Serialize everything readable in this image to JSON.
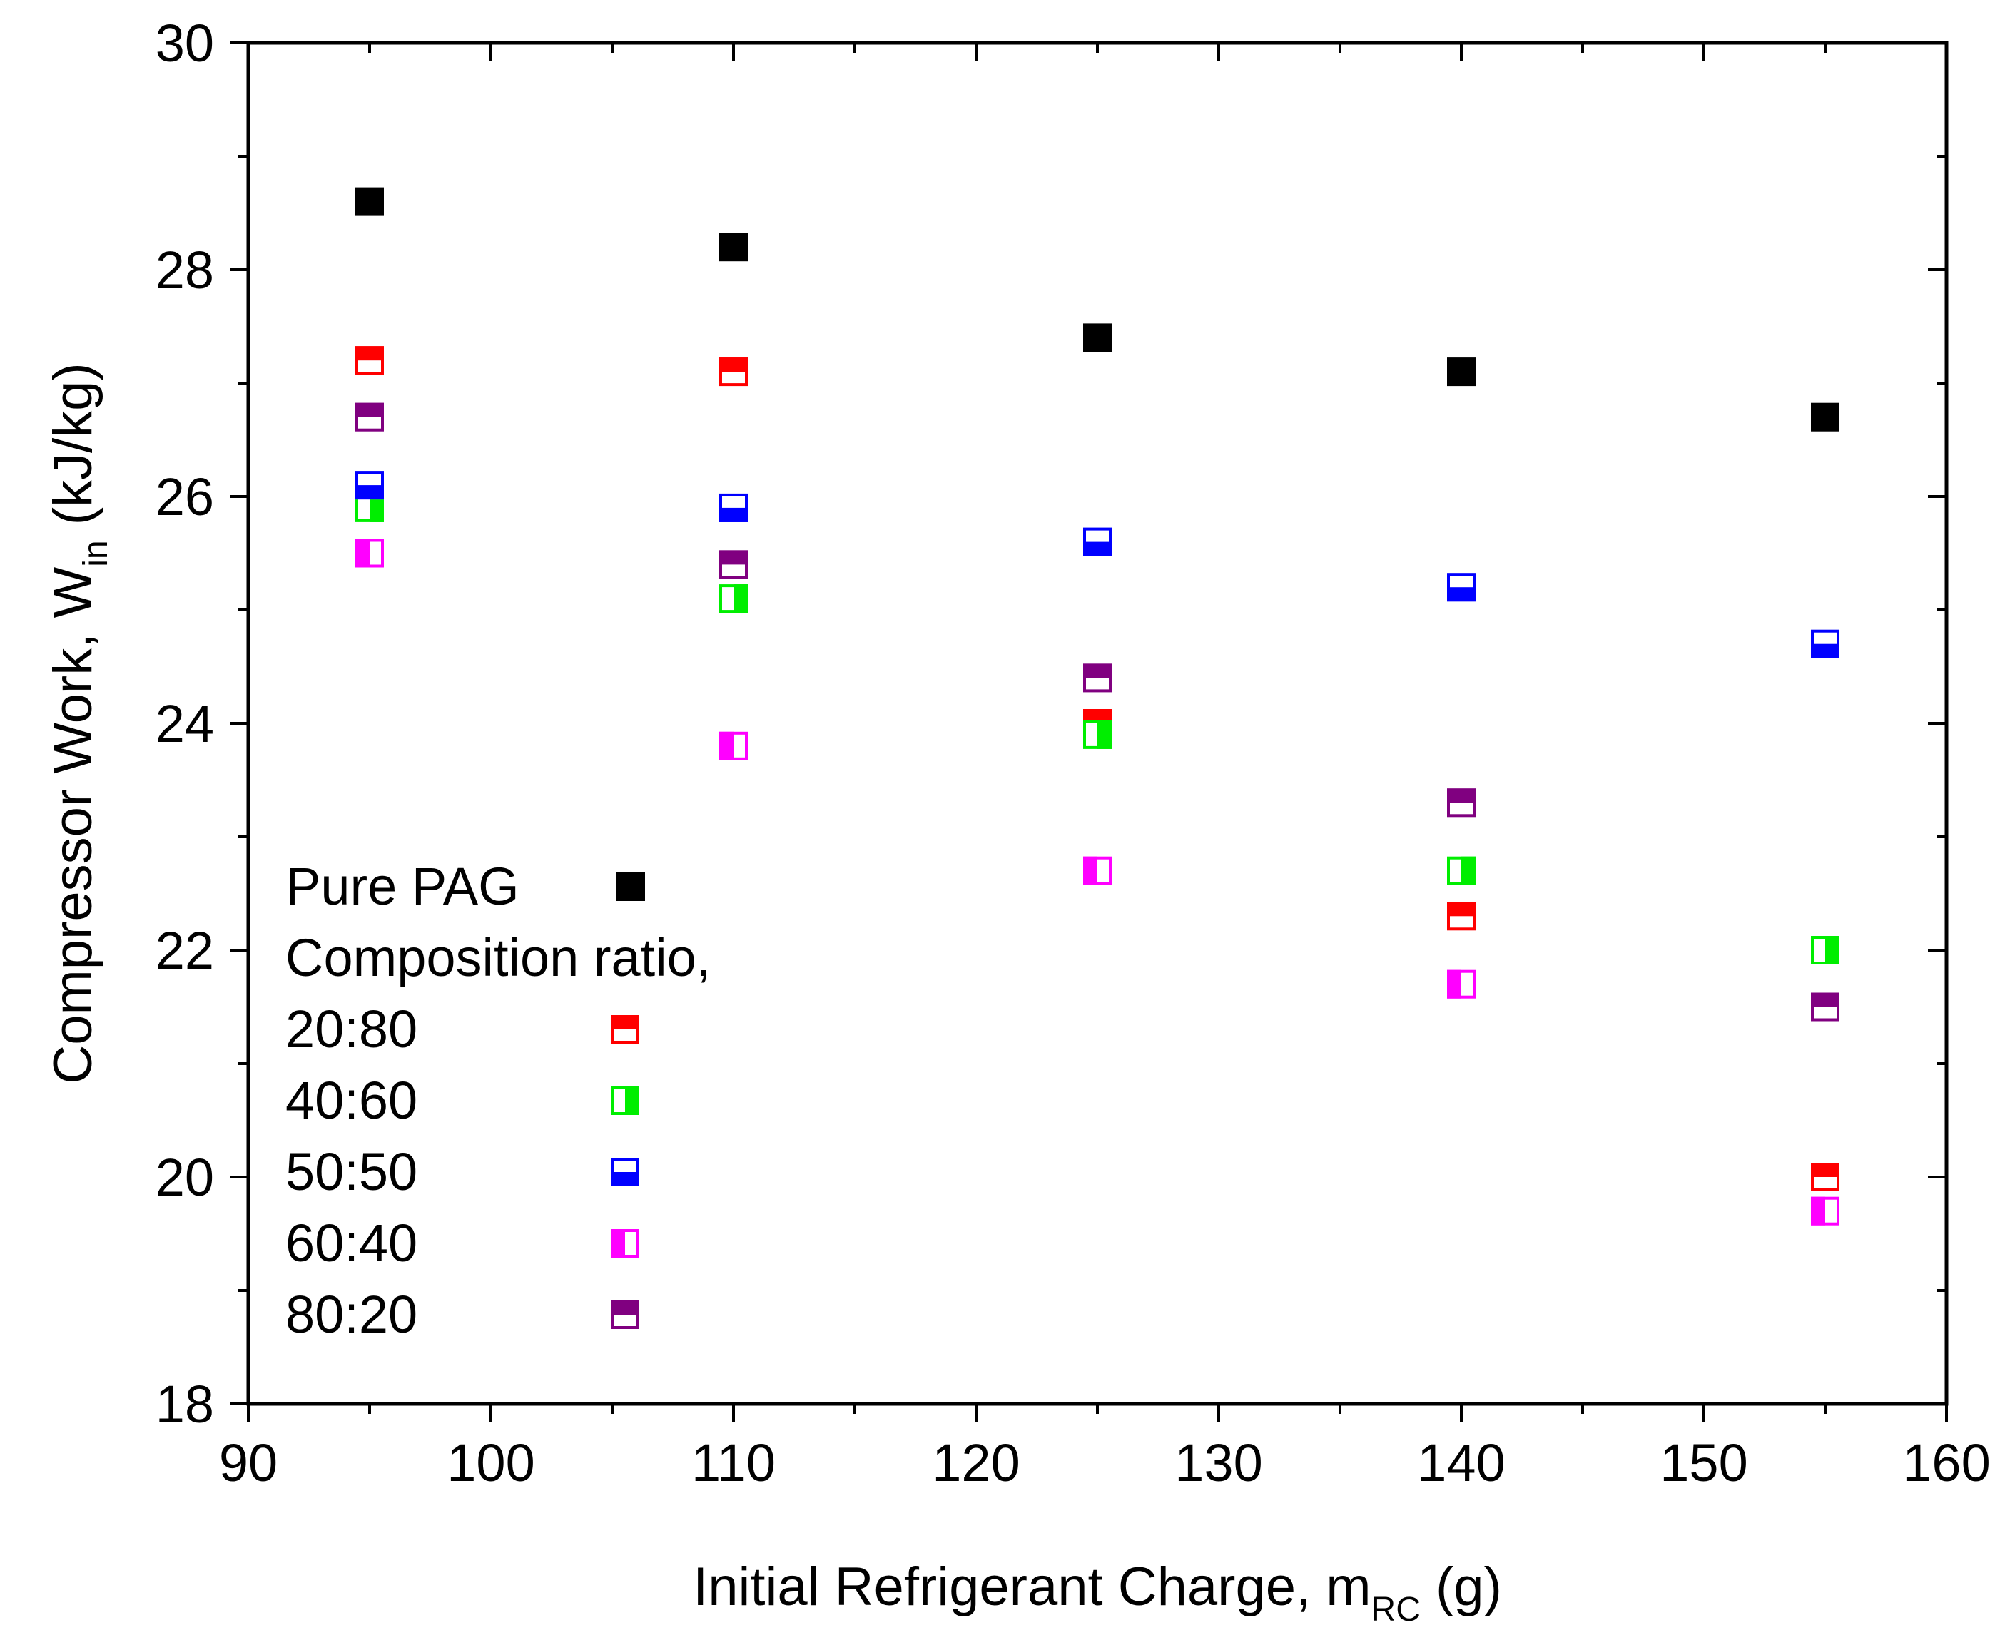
{
  "chart_data": {
    "type": "scatter",
    "title": "",
    "xlabel": {
      "main": "Initial Refrigerant Charge, m",
      "sub": "RC",
      "suffix": " (g)"
    },
    "ylabel": {
      "main": "Compressor Work, W",
      "sub": "in",
      "suffix": " (kJ/kg)"
    },
    "xlim": [
      90,
      160
    ],
    "ylim": [
      18,
      30
    ],
    "x_major_ticks": [
      90,
      100,
      110,
      120,
      130,
      140,
      150,
      160
    ],
    "x_tick_labels": [
      "90",
      "100",
      "110",
      "120",
      "130",
      "140",
      "150",
      "160"
    ],
    "y_major_ticks": [
      18,
      20,
      22,
      24,
      26,
      28,
      30
    ],
    "y_tick_labels": [
      "18",
      "20",
      "22",
      "24",
      "26",
      "28",
      "30"
    ],
    "x_minor_step": 5,
    "y_minor_step": 1,
    "grid": false,
    "legend": {
      "placement": "lower-left",
      "header": "Composition ratio,"
    },
    "x": [
      95,
      110,
      125,
      140,
      155
    ],
    "series": [
      {
        "name": "Pure PAG",
        "marker": "square-filled",
        "color": "#000000",
        "values": [
          28.6,
          28.2,
          27.4,
          27.1,
          26.7
        ]
      },
      {
        "name": "20:80",
        "marker": "square-top-filled",
        "color": "#ff0000",
        "values": [
          27.2,
          27.1,
          24.0,
          22.3,
          20.0
        ]
      },
      {
        "name": "40:60",
        "marker": "square-right-filled",
        "color": "#00ee00",
        "values": [
          25.9,
          25.1,
          23.9,
          22.7,
          22.0
        ]
      },
      {
        "name": "50:50",
        "marker": "square-bottom-filled",
        "color": "#0000ff",
        "values": [
          26.1,
          25.9,
          25.6,
          25.2,
          24.7
        ]
      },
      {
        "name": "60:40",
        "marker": "square-left-filled",
        "color": "#ff00ff",
        "values": [
          25.5,
          23.8,
          22.7,
          21.7,
          19.7
        ]
      },
      {
        "name": "80:20",
        "marker": "square-top-filled",
        "color": "#800080",
        "values": [
          26.7,
          25.4,
          24.4,
          23.3,
          21.5
        ]
      }
    ]
  }
}
